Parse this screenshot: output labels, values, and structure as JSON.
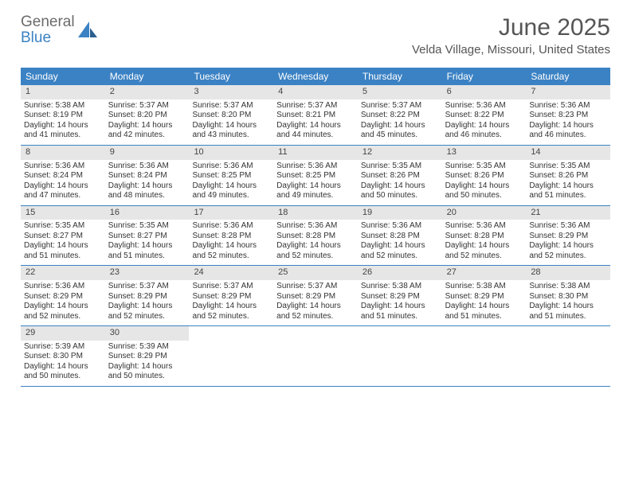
{
  "brand": {
    "line1": "General",
    "line2": "Blue"
  },
  "title": "June 2025",
  "location": "Velda Village, Missouri, United States",
  "colors": {
    "accent": "#3b82c4",
    "dayhead_bg": "#3b82c4",
    "dayhead_text": "#ffffff",
    "daynum_bg": "#e6e6e6",
    "text": "#333333",
    "title_text": "#555555"
  },
  "day_headers": [
    "Sunday",
    "Monday",
    "Tuesday",
    "Wednesday",
    "Thursday",
    "Friday",
    "Saturday"
  ],
  "weeks": [
    [
      {
        "n": "1",
        "sr": "Sunrise: 5:38 AM",
        "ss": "Sunset: 8:19 PM",
        "d1": "Daylight: 14 hours",
        "d2": "and 41 minutes."
      },
      {
        "n": "2",
        "sr": "Sunrise: 5:37 AM",
        "ss": "Sunset: 8:20 PM",
        "d1": "Daylight: 14 hours",
        "d2": "and 42 minutes."
      },
      {
        "n": "3",
        "sr": "Sunrise: 5:37 AM",
        "ss": "Sunset: 8:20 PM",
        "d1": "Daylight: 14 hours",
        "d2": "and 43 minutes."
      },
      {
        "n": "4",
        "sr": "Sunrise: 5:37 AM",
        "ss": "Sunset: 8:21 PM",
        "d1": "Daylight: 14 hours",
        "d2": "and 44 minutes."
      },
      {
        "n": "5",
        "sr": "Sunrise: 5:37 AM",
        "ss": "Sunset: 8:22 PM",
        "d1": "Daylight: 14 hours",
        "d2": "and 45 minutes."
      },
      {
        "n": "6",
        "sr": "Sunrise: 5:36 AM",
        "ss": "Sunset: 8:22 PM",
        "d1": "Daylight: 14 hours",
        "d2": "and 46 minutes."
      },
      {
        "n": "7",
        "sr": "Sunrise: 5:36 AM",
        "ss": "Sunset: 8:23 PM",
        "d1": "Daylight: 14 hours",
        "d2": "and 46 minutes."
      }
    ],
    [
      {
        "n": "8",
        "sr": "Sunrise: 5:36 AM",
        "ss": "Sunset: 8:24 PM",
        "d1": "Daylight: 14 hours",
        "d2": "and 47 minutes."
      },
      {
        "n": "9",
        "sr": "Sunrise: 5:36 AM",
        "ss": "Sunset: 8:24 PM",
        "d1": "Daylight: 14 hours",
        "d2": "and 48 minutes."
      },
      {
        "n": "10",
        "sr": "Sunrise: 5:36 AM",
        "ss": "Sunset: 8:25 PM",
        "d1": "Daylight: 14 hours",
        "d2": "and 49 minutes."
      },
      {
        "n": "11",
        "sr": "Sunrise: 5:36 AM",
        "ss": "Sunset: 8:25 PM",
        "d1": "Daylight: 14 hours",
        "d2": "and 49 minutes."
      },
      {
        "n": "12",
        "sr": "Sunrise: 5:35 AM",
        "ss": "Sunset: 8:26 PM",
        "d1": "Daylight: 14 hours",
        "d2": "and 50 minutes."
      },
      {
        "n": "13",
        "sr": "Sunrise: 5:35 AM",
        "ss": "Sunset: 8:26 PM",
        "d1": "Daylight: 14 hours",
        "d2": "and 50 minutes."
      },
      {
        "n": "14",
        "sr": "Sunrise: 5:35 AM",
        "ss": "Sunset: 8:26 PM",
        "d1": "Daylight: 14 hours",
        "d2": "and 51 minutes."
      }
    ],
    [
      {
        "n": "15",
        "sr": "Sunrise: 5:35 AM",
        "ss": "Sunset: 8:27 PM",
        "d1": "Daylight: 14 hours",
        "d2": "and 51 minutes."
      },
      {
        "n": "16",
        "sr": "Sunrise: 5:35 AM",
        "ss": "Sunset: 8:27 PM",
        "d1": "Daylight: 14 hours",
        "d2": "and 51 minutes."
      },
      {
        "n": "17",
        "sr": "Sunrise: 5:36 AM",
        "ss": "Sunset: 8:28 PM",
        "d1": "Daylight: 14 hours",
        "d2": "and 52 minutes."
      },
      {
        "n": "18",
        "sr": "Sunrise: 5:36 AM",
        "ss": "Sunset: 8:28 PM",
        "d1": "Daylight: 14 hours",
        "d2": "and 52 minutes."
      },
      {
        "n": "19",
        "sr": "Sunrise: 5:36 AM",
        "ss": "Sunset: 8:28 PM",
        "d1": "Daylight: 14 hours",
        "d2": "and 52 minutes."
      },
      {
        "n": "20",
        "sr": "Sunrise: 5:36 AM",
        "ss": "Sunset: 8:28 PM",
        "d1": "Daylight: 14 hours",
        "d2": "and 52 minutes."
      },
      {
        "n": "21",
        "sr": "Sunrise: 5:36 AM",
        "ss": "Sunset: 8:29 PM",
        "d1": "Daylight: 14 hours",
        "d2": "and 52 minutes."
      }
    ],
    [
      {
        "n": "22",
        "sr": "Sunrise: 5:36 AM",
        "ss": "Sunset: 8:29 PM",
        "d1": "Daylight: 14 hours",
        "d2": "and 52 minutes."
      },
      {
        "n": "23",
        "sr": "Sunrise: 5:37 AM",
        "ss": "Sunset: 8:29 PM",
        "d1": "Daylight: 14 hours",
        "d2": "and 52 minutes."
      },
      {
        "n": "24",
        "sr": "Sunrise: 5:37 AM",
        "ss": "Sunset: 8:29 PM",
        "d1": "Daylight: 14 hours",
        "d2": "and 52 minutes."
      },
      {
        "n": "25",
        "sr": "Sunrise: 5:37 AM",
        "ss": "Sunset: 8:29 PM",
        "d1": "Daylight: 14 hours",
        "d2": "and 52 minutes."
      },
      {
        "n": "26",
        "sr": "Sunrise: 5:38 AM",
        "ss": "Sunset: 8:29 PM",
        "d1": "Daylight: 14 hours",
        "d2": "and 51 minutes."
      },
      {
        "n": "27",
        "sr": "Sunrise: 5:38 AM",
        "ss": "Sunset: 8:29 PM",
        "d1": "Daylight: 14 hours",
        "d2": "and 51 minutes."
      },
      {
        "n": "28",
        "sr": "Sunrise: 5:38 AM",
        "ss": "Sunset: 8:30 PM",
        "d1": "Daylight: 14 hours",
        "d2": "and 51 minutes."
      }
    ],
    [
      {
        "n": "29",
        "sr": "Sunrise: 5:39 AM",
        "ss": "Sunset: 8:30 PM",
        "d1": "Daylight: 14 hours",
        "d2": "and 50 minutes."
      },
      {
        "n": "30",
        "sr": "Sunrise: 5:39 AM",
        "ss": "Sunset: 8:29 PM",
        "d1": "Daylight: 14 hours",
        "d2": "and 50 minutes."
      },
      null,
      null,
      null,
      null,
      null
    ]
  ]
}
